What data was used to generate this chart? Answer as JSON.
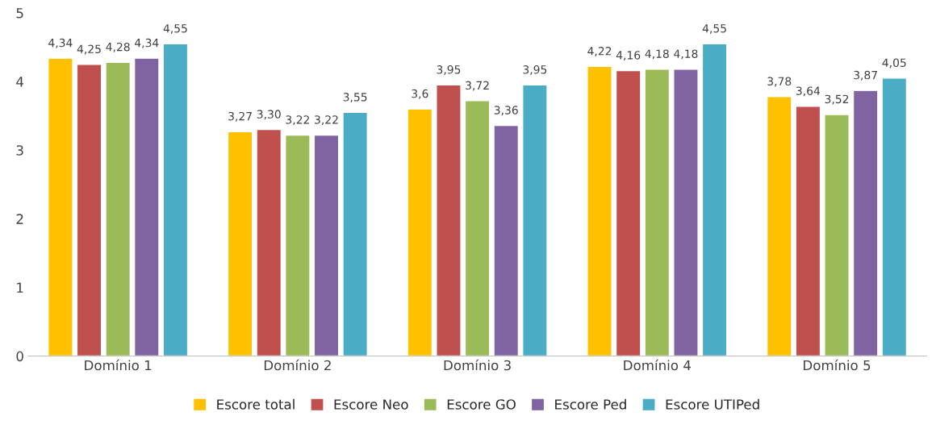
{
  "chart_data": {
    "type": "bar",
    "categories": [
      "Domínio 1",
      "Domínio 2",
      "Domínio 3",
      "Domínio 4",
      "Domínio 5"
    ],
    "series": [
      {
        "name": "Escore total",
        "color": "#ffc000",
        "values": [
          4.34,
          3.27,
          3.6,
          4.22,
          3.78
        ],
        "value_labels": [
          "4,34",
          "3,27",
          "3,6",
          "4,22",
          "3,78"
        ]
      },
      {
        "name": "Escore Neo",
        "color": "#c0504d",
        "values": [
          4.25,
          3.3,
          3.95,
          4.16,
          3.64
        ],
        "value_labels": [
          "4,25",
          "3,30",
          "3,95",
          "4,16",
          "3,64"
        ]
      },
      {
        "name": "Escore GO",
        "color": "#9bbb59",
        "values": [
          4.28,
          3.22,
          3.72,
          4.18,
          3.52
        ],
        "value_labels": [
          "4,28",
          "3,22",
          "3,72",
          "4,18",
          "3,52"
        ]
      },
      {
        "name": "Escore Ped",
        "color": "#8064a2",
        "values": [
          4.34,
          3.22,
          3.36,
          4.18,
          3.87
        ],
        "value_labels": [
          "4,34",
          "3,22",
          "3,36",
          "4,18",
          "3,87"
        ]
      },
      {
        "name": "Escore UTIPed",
        "color": "#4bacc6",
        "values": [
          4.55,
          3.55,
          3.95,
          4.55,
          4.05
        ],
        "value_labels": [
          "4,55",
          "3,55",
          "3,95",
          "4,55",
          "4,05"
        ]
      }
    ],
    "ylim": [
      0,
      5
    ],
    "yticks": [
      0,
      1,
      2,
      3,
      4,
      5
    ],
    "grid": false,
    "legend": "bottom"
  }
}
